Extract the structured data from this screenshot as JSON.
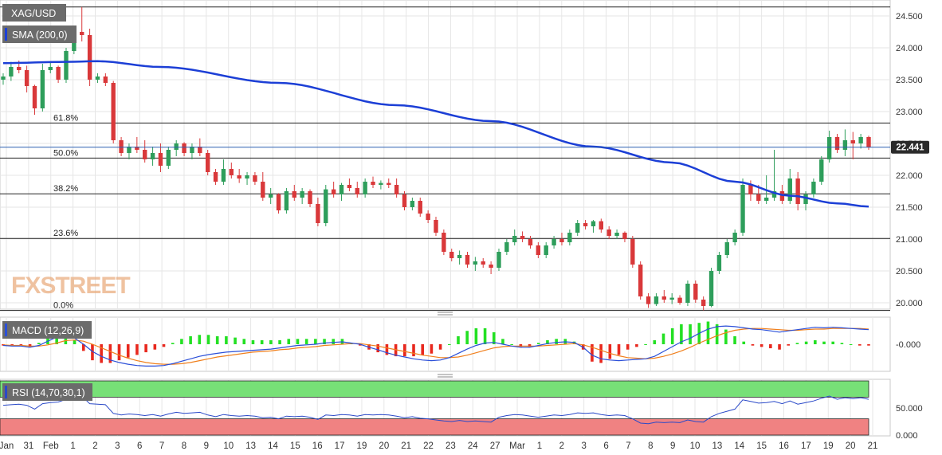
{
  "symbol_label": "XAG/USD",
  "sma_label": "SMA (200,0)",
  "macd_label": "MACD (12,26,9)",
  "rsi_label": "RSI (14,70,30,1)",
  "watermark": "FXSTREET",
  "last_price": "22.441",
  "colors": {
    "bull": "#2e9e5b",
    "bear": "#d9383a",
    "sma": "#1c3fd6",
    "macd": "#2b4fd8",
    "signal": "#f07f1c",
    "hist_pos": "#23e023",
    "hist_neg": "#e8281e",
    "rsi": "#2a49c8",
    "rsi_ob": "#77e077",
    "rsi_os": "#f08282",
    "grid": "#e6e6e6",
    "label_bg": "#6b6b6b",
    "price_tag": "#2a2a2a"
  },
  "chart_data": {
    "type": "candlestick",
    "price_axis": {
      "ticks": [
        "24.500",
        "24.000",
        "23.500",
        "23.000",
        "22.500",
        "22.000",
        "21.500",
        "21.000",
        "20.500",
        "20.000"
      ],
      "ylim": [
        19.9,
        24.6
      ]
    },
    "x_axis_ticks": [
      "Jan",
      "31",
      "Feb",
      "1",
      "2",
      "3",
      "6",
      "7",
      "8",
      "9",
      "10",
      "13",
      "14",
      "15",
      "16",
      "17",
      "19",
      "20",
      "21",
      "22",
      "23",
      "24",
      "27",
      "Mar",
      "1",
      "2",
      "3",
      "6",
      "7",
      "8",
      "9",
      "10",
      "13",
      "14",
      "15",
      "16",
      "17",
      "19",
      "20",
      "21"
    ],
    "fib_levels": [
      {
        "label": "61.8%",
        "value": 22.82
      },
      {
        "label": "50.0%",
        "value": 22.27
      },
      {
        "label": "38.2%",
        "value": 21.71
      },
      {
        "label": "23.6%",
        "value": 21.01
      },
      {
        "label": "0.0%",
        "value": 19.88
      }
    ],
    "swing_high": 24.64,
    "current_price": 22.441,
    "candles": [
      [
        23.5,
        23.6,
        23.42,
        23.55
      ],
      [
        23.55,
        23.78,
        23.48,
        23.7
      ],
      [
        23.7,
        23.8,
        23.6,
        23.65
      ],
      [
        23.65,
        23.72,
        23.3,
        23.4
      ],
      [
        23.4,
        23.42,
        22.95,
        23.05
      ],
      [
        23.05,
        23.75,
        23.0,
        23.65
      ],
      [
        23.65,
        23.78,
        23.6,
        23.7
      ],
      [
        23.7,
        23.72,
        23.45,
        23.5
      ],
      [
        23.5,
        24.0,
        23.45,
        23.95
      ],
      [
        23.95,
        24.3,
        23.9,
        24.25
      ],
      [
        24.25,
        24.64,
        24.1,
        24.2
      ],
      [
        24.2,
        24.3,
        23.4,
        23.5
      ],
      [
        23.5,
        23.6,
        23.45,
        23.55
      ],
      [
        23.55,
        23.6,
        23.4,
        23.45
      ],
      [
        23.45,
        23.48,
        22.5,
        22.55
      ],
      [
        22.55,
        22.6,
        22.3,
        22.35
      ],
      [
        22.35,
        22.5,
        22.25,
        22.45
      ],
      [
        22.45,
        22.6,
        22.35,
        22.4
      ],
      [
        22.4,
        22.55,
        22.2,
        22.25
      ],
      [
        22.25,
        22.45,
        22.15,
        22.35
      ],
      [
        22.35,
        22.5,
        22.05,
        22.15
      ],
      [
        22.15,
        22.45,
        22.1,
        22.4
      ],
      [
        22.4,
        22.55,
        22.3,
        22.5
      ],
      [
        22.5,
        22.52,
        22.3,
        22.35
      ],
      [
        22.35,
        22.5,
        22.25,
        22.45
      ],
      [
        22.45,
        22.58,
        22.3,
        22.35
      ],
      [
        22.35,
        22.4,
        22.0,
        22.05
      ],
      [
        22.05,
        22.1,
        21.85,
        21.9
      ],
      [
        21.9,
        22.25,
        21.85,
        22.1
      ],
      [
        22.1,
        22.2,
        21.95,
        22.0
      ],
      [
        22.0,
        22.1,
        21.88,
        21.95
      ],
      [
        21.95,
        22.05,
        21.85,
        22.0
      ],
      [
        22.0,
        22.05,
        21.85,
        21.9
      ],
      [
        21.9,
        22.05,
        21.6,
        21.65
      ],
      [
        21.65,
        21.8,
        21.55,
        21.7
      ],
      [
        21.7,
        21.72,
        21.4,
        21.45
      ],
      [
        21.45,
        21.8,
        21.4,
        21.75
      ],
      [
        21.75,
        21.85,
        21.6,
        21.65
      ],
      [
        21.65,
        21.8,
        21.55,
        21.75
      ],
      [
        21.75,
        21.78,
        21.5,
        21.55
      ],
      [
        21.55,
        21.65,
        21.2,
        21.25
      ],
      [
        21.25,
        21.85,
        21.2,
        21.78
      ],
      [
        21.78,
        21.9,
        21.65,
        21.7
      ],
      [
        21.7,
        21.88,
        21.6,
        21.85
      ],
      [
        21.85,
        21.95,
        21.75,
        21.8
      ],
      [
        21.8,
        21.9,
        21.65,
        21.7
      ],
      [
        21.7,
        21.95,
        21.65,
        21.9
      ],
      [
        21.9,
        21.98,
        21.8,
        21.85
      ],
      [
        21.85,
        21.92,
        21.78,
        21.88
      ],
      [
        21.88,
        21.95,
        21.8,
        21.85
      ],
      [
        21.85,
        21.95,
        21.65,
        21.7
      ],
      [
        21.7,
        21.75,
        21.45,
        21.5
      ],
      [
        21.5,
        21.65,
        21.45,
        21.6
      ],
      [
        21.6,
        21.65,
        21.35,
        21.4
      ],
      [
        21.4,
        21.45,
        21.25,
        21.3
      ],
      [
        21.3,
        21.35,
        21.05,
        21.1
      ],
      [
        21.1,
        21.15,
        20.75,
        20.8
      ],
      [
        20.8,
        20.85,
        20.65,
        20.7
      ],
      [
        20.7,
        20.82,
        20.6,
        20.75
      ],
      [
        20.75,
        20.8,
        20.55,
        20.6
      ],
      [
        20.6,
        20.72,
        20.5,
        20.65
      ],
      [
        20.65,
        20.7,
        20.55,
        20.6
      ],
      [
        20.6,
        20.65,
        20.45,
        20.55
      ],
      [
        20.55,
        20.85,
        20.5,
        20.8
      ],
      [
        20.8,
        21.0,
        20.75,
        20.95
      ],
      [
        20.95,
        21.15,
        20.9,
        21.05
      ],
      [
        21.05,
        21.12,
        20.95,
        21.0
      ],
      [
        21.0,
        21.05,
        20.85,
        20.9
      ],
      [
        20.9,
        20.95,
        20.7,
        20.75
      ],
      [
        20.75,
        20.95,
        20.7,
        20.9
      ],
      [
        20.9,
        21.05,
        20.85,
        21.0
      ],
      [
        21.0,
        21.1,
        20.9,
        20.95
      ],
      [
        20.95,
        21.15,
        20.9,
        21.1
      ],
      [
        21.1,
        21.3,
        21.05,
        21.25
      ],
      [
        21.25,
        21.3,
        21.15,
        21.2
      ],
      [
        21.2,
        21.3,
        21.1,
        21.28
      ],
      [
        21.28,
        21.32,
        21.1,
        21.15
      ],
      [
        21.15,
        21.2,
        21.0,
        21.05
      ],
      [
        21.05,
        21.15,
        21.0,
        21.1
      ],
      [
        21.1,
        21.12,
        20.95,
        21.0
      ],
      [
        21.0,
        21.05,
        20.55,
        20.6
      ],
      [
        20.6,
        20.65,
        20.05,
        20.1
      ],
      [
        20.1,
        20.15,
        19.92,
        19.98
      ],
      [
        19.98,
        20.15,
        19.95,
        20.1
      ],
      [
        20.1,
        20.2,
        20.0,
        20.05
      ],
      [
        20.05,
        20.15,
        19.98,
        20.08
      ],
      [
        20.08,
        20.12,
        19.97,
        20.0
      ],
      [
        20.0,
        20.35,
        19.95,
        20.3
      ],
      [
        20.3,
        20.35,
        20.0,
        20.05
      ],
      [
        20.05,
        20.1,
        19.88,
        19.95
      ],
      [
        19.95,
        20.55,
        19.93,
        20.5
      ],
      [
        20.5,
        20.8,
        20.45,
        20.75
      ],
      [
        20.75,
        21.0,
        20.7,
        20.95
      ],
      [
        20.95,
        21.15,
        20.9,
        21.1
      ],
      [
        21.1,
        21.95,
        21.05,
        21.85
      ],
      [
        21.85,
        21.92,
        21.6,
        21.7
      ],
      [
        21.7,
        21.85,
        21.55,
        21.6
      ],
      [
        21.6,
        22.0,
        21.55,
        21.65
      ],
      [
        21.65,
        22.4,
        21.6,
        21.75
      ],
      [
        21.75,
        21.85,
        21.55,
        21.6
      ],
      [
        21.6,
        22.1,
        21.55,
        21.95
      ],
      [
        21.95,
        22.05,
        21.45,
        21.55
      ],
      [
        21.55,
        21.75,
        21.45,
        21.7
      ],
      [
        21.7,
        21.95,
        21.65,
        21.9
      ],
      [
        21.9,
        22.3,
        21.85,
        22.25
      ],
      [
        22.25,
        22.7,
        22.2,
        22.6
      ],
      [
        22.6,
        22.65,
        22.35,
        22.4
      ],
      [
        22.4,
        22.72,
        22.3,
        22.55
      ],
      [
        22.55,
        22.68,
        22.25,
        22.5
      ],
      [
        22.5,
        22.65,
        22.42,
        22.6
      ],
      [
        22.6,
        22.62,
        22.4,
        22.441
      ]
    ]
  },
  "macd_panel": {
    "axis_tick": "-0.000",
    "ylim": [
      -0.42,
      0.42
    ],
    "macd": [
      -0.02,
      -0.03,
      -0.03,
      -0.05,
      -0.02,
      0.05,
      0.12,
      0.18,
      0.1,
      0.0,
      -0.12,
      -0.2,
      -0.26,
      -0.3,
      -0.33,
      -0.35,
      -0.36,
      -0.36,
      -0.35,
      -0.32,
      -0.28,
      -0.24,
      -0.2,
      -0.17,
      -0.15,
      -0.13,
      -0.12,
      -0.11,
      -0.1,
      -0.09,
      -0.08,
      -0.06,
      -0.04,
      -0.02,
      -0.01,
      0.0,
      0.02,
      0.03,
      0.04,
      0.02,
      0.0,
      -0.05,
      -0.09,
      -0.14,
      -0.18,
      -0.21,
      -0.24,
      -0.26,
      -0.27,
      -0.26,
      -0.22,
      -0.15,
      -0.08,
      -0.02,
      0.02,
      0.03,
      0.0,
      -0.03,
      -0.05,
      -0.05,
      -0.02,
      0.01,
      0.03,
      0.04,
      0.03,
      -0.05,
      -0.18,
      -0.24,
      -0.26,
      -0.27,
      -0.26,
      -0.25,
      -0.24,
      -0.2,
      -0.12,
      -0.04,
      0.04,
      0.1,
      0.18,
      0.25,
      0.29,
      0.3,
      0.29,
      0.27,
      0.25,
      0.24,
      0.22,
      0.2,
      0.22,
      0.24,
      0.26,
      0.28,
      0.27,
      0.28,
      0.27,
      0.26,
      0.25,
      0.24
    ],
    "signal": [
      -0.01,
      -0.02,
      -0.02,
      -0.03,
      -0.03,
      -0.01,
      0.02,
      0.06,
      0.07,
      0.05,
      0.0,
      -0.06,
      -0.12,
      -0.18,
      -0.23,
      -0.27,
      -0.3,
      -0.32,
      -0.33,
      -0.33,
      -0.32,
      -0.3,
      -0.27,
      -0.24,
      -0.21,
      -0.19,
      -0.17,
      -0.15,
      -0.13,
      -0.12,
      -0.11,
      -0.09,
      -0.08,
      -0.06,
      -0.05,
      -0.04,
      -0.02,
      -0.01,
      0.0,
      0.01,
      0.01,
      -0.01,
      -0.03,
      -0.06,
      -0.09,
      -0.12,
      -0.15,
      -0.18,
      -0.2,
      -0.22,
      -0.22,
      -0.21,
      -0.18,
      -0.14,
      -0.1,
      -0.06,
      -0.04,
      -0.03,
      -0.03,
      -0.03,
      -0.03,
      -0.02,
      -0.01,
      0.0,
      0.01,
      -0.01,
      -0.05,
      -0.1,
      -0.15,
      -0.19,
      -0.22,
      -0.23,
      -0.24,
      -0.23,
      -0.2,
      -0.16,
      -0.11,
      -0.05,
      0.02,
      0.08,
      0.14,
      0.19,
      0.23,
      0.25,
      0.26,
      0.26,
      0.25,
      0.24,
      0.23,
      0.23,
      0.24,
      0.25,
      0.25,
      0.26,
      0.26,
      0.26,
      0.26,
      0.25
    ]
  },
  "rsi_panel": {
    "ticks": [
      "50.000",
      "0.000"
    ],
    "ylim": [
      0,
      100
    ],
    "overbought": 70,
    "oversold": 30,
    "values": [
      55,
      56,
      57,
      55,
      48,
      58,
      60,
      61,
      66,
      70,
      72,
      58,
      57,
      56,
      40,
      37,
      39,
      38,
      36,
      38,
      35,
      39,
      42,
      40,
      41,
      42,
      37,
      34,
      38,
      36,
      35,
      36,
      35,
      32,
      33,
      30,
      35,
      34,
      35,
      33,
      29,
      37,
      36,
      38,
      37,
      35,
      38,
      37,
      38,
      37,
      35,
      32,
      34,
      31,
      30,
      28,
      26,
      25,
      27,
      25,
      26,
      25,
      24,
      33,
      36,
      38,
      37,
      35,
      33,
      35,
      37,
      36,
      38,
      41,
      40,
      41,
      38,
      36,
      37,
      36,
      30,
      22,
      21,
      24,
      23,
      24,
      23,
      28,
      25,
      24,
      34,
      40,
      44,
      48,
      65,
      62,
      59,
      60,
      62,
      58,
      63,
      57,
      60,
      63,
      68,
      72,
      66,
      69,
      67,
      69,
      66
    ]
  }
}
